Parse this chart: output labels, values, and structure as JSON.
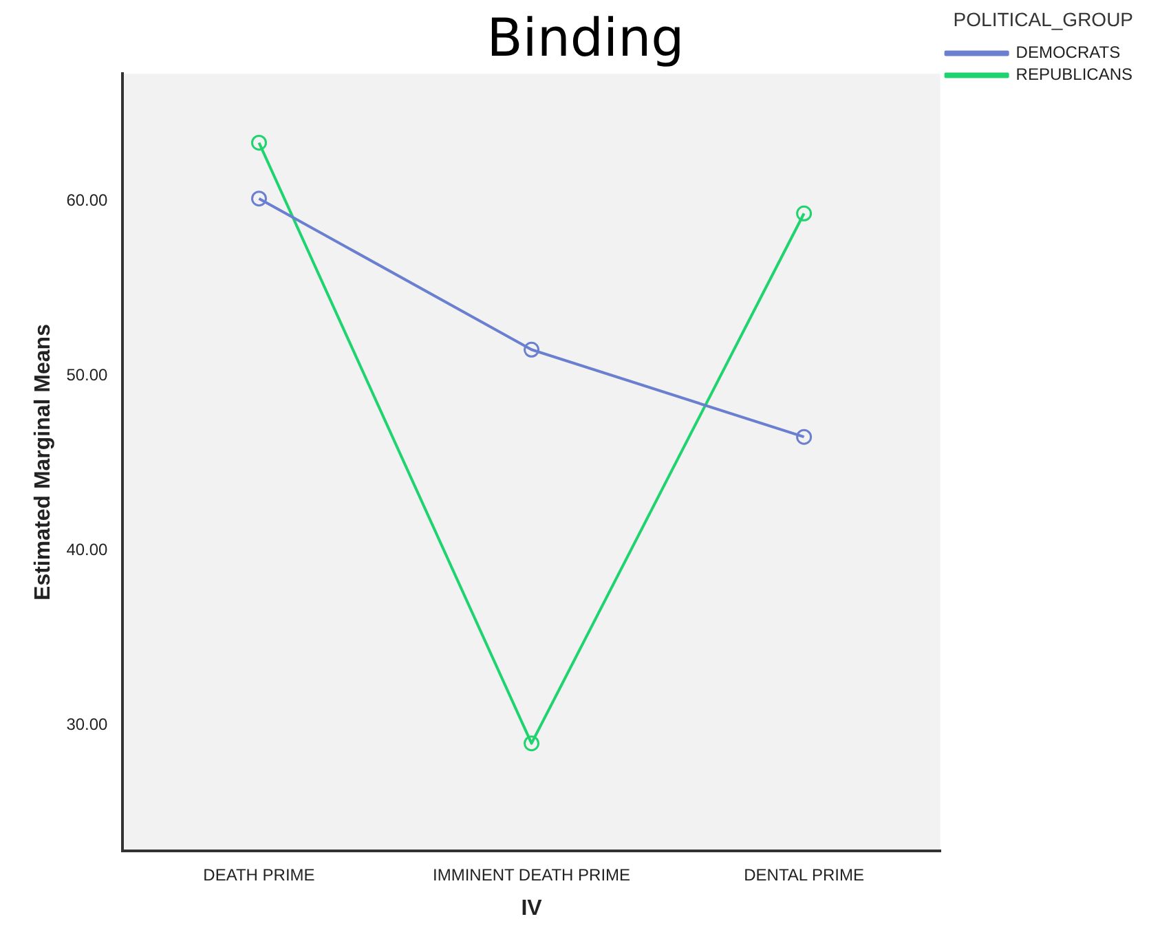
{
  "chart_data": {
    "type": "line",
    "title": "Binding",
    "xlabel": "IV",
    "ylabel": "Estimated Marginal Means",
    "legend_title": "POLITICAL_GROUP",
    "categories": [
      "DEATH PRIME",
      "IMMINENT DEATH PRIME",
      "DENTAL PRIME"
    ],
    "series": [
      {
        "name": "DEMOCRATS",
        "color": "#6a7fd0",
        "values": [
          60.15,
          51.5,
          46.5
        ]
      },
      {
        "name": "REPUBLICANS",
        "color": "#1fd36e",
        "values": [
          63.35,
          28.95,
          59.3
        ]
      }
    ],
    "ylim": [
      22.8,
      67.3
    ],
    "yticks": [
      {
        "value": 30,
        "label": "30.00"
      },
      {
        "value": 40,
        "label": "40.00"
      },
      {
        "value": 50,
        "label": "50.00"
      },
      {
        "value": 60,
        "label": "60.00"
      }
    ],
    "grid": false,
    "legend": "top right",
    "marker": "circle",
    "line_style": "solid"
  }
}
